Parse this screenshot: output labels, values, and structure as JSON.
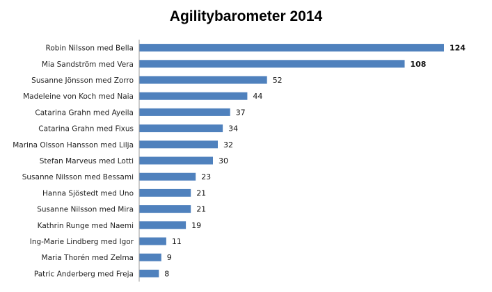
{
  "chart_data": {
    "type": "bar",
    "orientation": "horizontal",
    "title": "Agilitybarometer 2014",
    "categories": [
      "Robin Nilsson med Bella",
      "Mia Sandström med Vera",
      "Susanne Jönsson med Zorro",
      "Madeleine von Koch med Naia",
      "Catarina Grahn med Ayeila",
      "Catarina Grahn med Fixus",
      "Marina Olsson Hansson med Lilja",
      "Stefan Marveus med Lotti",
      "Susanne Nilsson med Bessami",
      "Hanna Sjöstedt med Uno",
      "Susanne Nilsson med Mira",
      "Kathrin Runge med Naemi",
      "Ing-Marie Lindberg med Igor",
      "Maria Thorén med Zelma",
      "Patric Anderberg med Freja"
    ],
    "values": [
      124,
      108,
      52,
      44,
      37,
      34,
      32,
      30,
      23,
      21,
      21,
      19,
      11,
      9,
      8
    ],
    "xlim": [
      0,
      124
    ],
    "bar_color": "#4f81bd",
    "axis_color": "#999999",
    "grid": false,
    "legend": "none"
  }
}
